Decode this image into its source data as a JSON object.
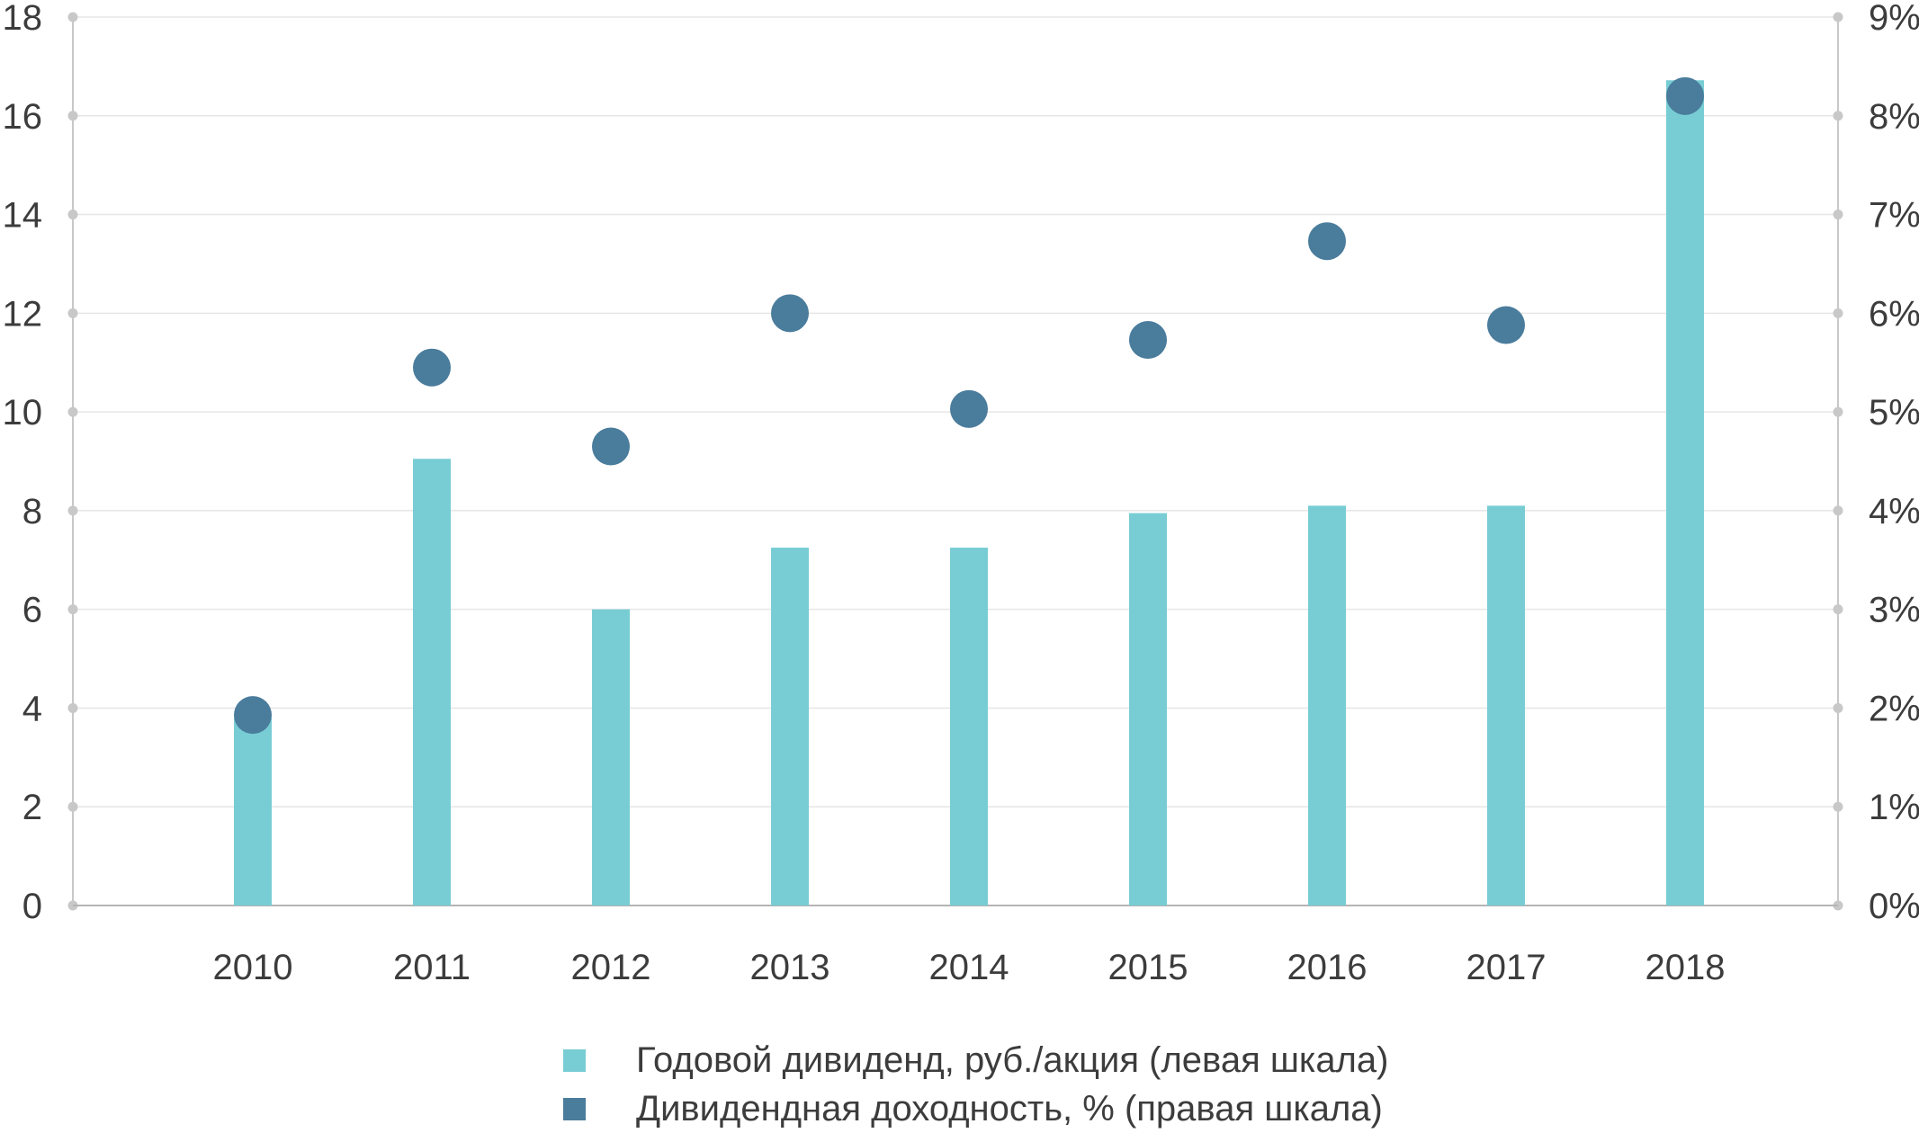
{
  "chart_data": {
    "type": "bar",
    "categories": [
      "2010",
      "2011",
      "2012",
      "2013",
      "2014",
      "2015",
      "2016",
      "2017",
      "2018"
    ],
    "series": [
      {
        "name": "Годовой дивиденд, руб./акция (левая шкала)",
        "type": "bar",
        "axis": "left",
        "color": "#78cdd4",
        "values": [
          3.8,
          9.05,
          6.0,
          7.25,
          7.25,
          7.95,
          8.1,
          8.1,
          16.72
        ]
      },
      {
        "name": "Дивидендная доходность, % (правая шкала)",
        "type": "scatter",
        "axis": "right",
        "color": "#4a7c9c",
        "values": [
          1.93,
          5.45,
          4.65,
          6.0,
          5.03,
          5.73,
          6.73,
          5.88,
          8.2
        ]
      }
    ],
    "ylim": [
      0,
      18
    ],
    "yticks": [
      "0",
      "2",
      "4",
      "6",
      "8",
      "10",
      "12",
      "14",
      "16",
      "18"
    ],
    "y2lim": [
      0,
      9
    ],
    "y2ticks": [
      "0%",
      "1%",
      "2%",
      "3%",
      "4%",
      "5%",
      "6%",
      "7%",
      "8%",
      "9%"
    ],
    "grid": true,
    "legend_position": "bottom"
  }
}
